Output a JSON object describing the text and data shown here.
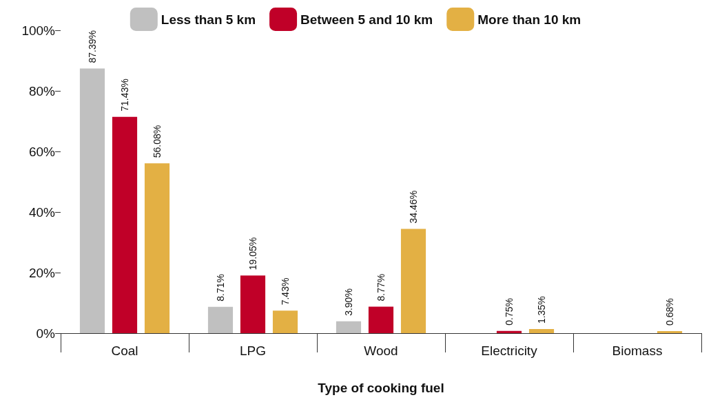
{
  "chart_data": {
    "type": "bar",
    "xlabel": "Type of cooking fuel",
    "categories": [
      "Coal",
      "LPG",
      "Wood",
      "Electricity",
      "Biomass"
    ],
    "series": [
      {
        "name": "Less than 5 km",
        "color": "#c0c0c0",
        "values": [
          87.39,
          8.71,
          3.9,
          0,
          0
        ],
        "value_labels": [
          "87.39%",
          "8.71%",
          "3.90%",
          null,
          null
        ]
      },
      {
        "name": "Between 5 and 10 km",
        "color": "#c00028",
        "values": [
          71.43,
          19.05,
          8.77,
          0.75,
          0
        ],
        "value_labels": [
          "71.43%",
          "19.05%",
          "8.77%",
          "0.75%",
          null
        ]
      },
      {
        "name": "More than 10 km",
        "color": "#e3b044",
        "values": [
          56.08,
          7.43,
          34.46,
          1.35,
          0.68
        ],
        "value_labels": [
          "56.08%",
          "7.43%",
          "34.46%",
          "1.35%",
          "0.68%"
        ]
      }
    ],
    "ylim": [
      0,
      100
    ],
    "yticks": [
      {
        "value": 0,
        "label": "0%"
      },
      {
        "value": 20,
        "label": "20%"
      },
      {
        "value": 40,
        "label": "40%"
      },
      {
        "value": 60,
        "label": "60%"
      },
      {
        "value": 80,
        "label": "80%"
      },
      {
        "value": 100,
        "label": "100%"
      }
    ],
    "grid": false,
    "legend": "top"
  }
}
